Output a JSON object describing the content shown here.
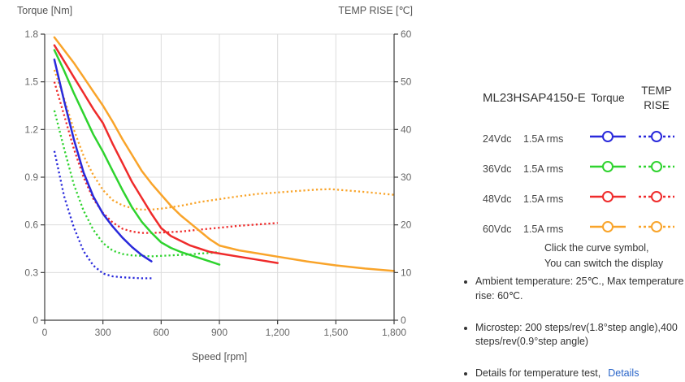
{
  "chart_data": {
    "type": "line",
    "xlabel": "Speed [rpm]",
    "ylabel_left": "Torque [Nm]",
    "ylabel_right": "TEMP RISE [℃]",
    "x_range": [
      0,
      1800
    ],
    "x_tick_values": [
      0,
      300,
      600,
      900,
      1200,
      1500,
      1800
    ],
    "x_tick_labels": [
      "0",
      "300",
      "600",
      "900",
      "1,200",
      "1,500",
      "1,800"
    ],
    "left_axis_range": [
      0,
      1.8
    ],
    "left_tick_values": [
      0,
      0.3,
      0.6,
      0.9,
      1.2,
      1.5,
      1.8
    ],
    "left_tick_labels": [
      "0",
      "0.3",
      "0.6",
      "0.9",
      "1.2",
      "1.5",
      "1.8"
    ],
    "right_axis_range": [
      0,
      60
    ],
    "right_tick_values": [
      0,
      10,
      20,
      30,
      40,
      50,
      60
    ],
    "right_tick_labels": [
      "0",
      "10",
      "20",
      "30",
      "40",
      "50",
      "60"
    ],
    "grid": true,
    "legend_position": "right-panel",
    "series": [
      {
        "id": "24vdc-temp-rise",
        "name": "24Vdc 1.5A rms TEMP RISE",
        "axis": "right",
        "line": "dotted",
        "color": "#2929db",
        "points": [
          [
            50,
            35.5
          ],
          [
            100,
            26
          ],
          [
            150,
            19.5
          ],
          [
            200,
            14.5
          ],
          [
            250,
            11.5
          ],
          [
            300,
            9.8
          ],
          [
            350,
            9.2
          ],
          [
            400,
            9.0
          ],
          [
            450,
            8.9
          ],
          [
            500,
            8.8
          ],
          [
            550,
            8.8
          ]
        ]
      },
      {
        "id": "36vdc-temp-rise",
        "name": "36Vdc 1.5A rms TEMP RISE",
        "axis": "right",
        "line": "dotted",
        "color": "#2ed32e",
        "points": [
          [
            50,
            44
          ],
          [
            100,
            36
          ],
          [
            150,
            28.5
          ],
          [
            200,
            23
          ],
          [
            250,
            19
          ],
          [
            300,
            16.2
          ],
          [
            350,
            14.6
          ],
          [
            400,
            13.9
          ],
          [
            450,
            13.6
          ],
          [
            500,
            13.5
          ],
          [
            550,
            13.4
          ],
          [
            600,
            13.5
          ],
          [
            650,
            13.6
          ],
          [
            700,
            13.7
          ],
          [
            750,
            13.8
          ],
          [
            800,
            14.0
          ],
          [
            850,
            14.1
          ],
          [
            900,
            14.3
          ]
        ]
      },
      {
        "id": "48vdc-temp-rise",
        "name": "48Vdc 1.5A rms TEMP RISE",
        "axis": "right",
        "line": "dotted",
        "color": "#ef2b2b",
        "points": [
          [
            50,
            50
          ],
          [
            100,
            43
          ],
          [
            150,
            36
          ],
          [
            200,
            30
          ],
          [
            250,
            25.5
          ],
          [
            300,
            22.5
          ],
          [
            350,
            20.5
          ],
          [
            400,
            19.2
          ],
          [
            450,
            18.6
          ],
          [
            500,
            18.3
          ],
          [
            550,
            18.3
          ],
          [
            600,
            18.4
          ],
          [
            650,
            18.5
          ],
          [
            700,
            18.6
          ],
          [
            750,
            18.8
          ],
          [
            800,
            19.0
          ],
          [
            900,
            19.4
          ],
          [
            1000,
            19.8
          ],
          [
            1100,
            20.1
          ],
          [
            1200,
            20.4
          ]
        ]
      },
      {
        "id": "60vdc-temp-rise",
        "name": "60Vdc 1.5A rms TEMP RISE",
        "axis": "right",
        "line": "dotted",
        "color": "#f9a42a",
        "points": [
          [
            50,
            52.5
          ],
          [
            100,
            46.5
          ],
          [
            150,
            40
          ],
          [
            200,
            34.5
          ],
          [
            250,
            30.5
          ],
          [
            300,
            27.3
          ],
          [
            350,
            25.2
          ],
          [
            400,
            24.1
          ],
          [
            450,
            23.5
          ],
          [
            500,
            23.2
          ],
          [
            550,
            23.2
          ],
          [
            600,
            23.4
          ],
          [
            650,
            23.7
          ],
          [
            700,
            24.0
          ],
          [
            750,
            24.4
          ],
          [
            800,
            24.8
          ],
          [
            900,
            25.4
          ],
          [
            1000,
            26.0
          ],
          [
            1100,
            26.5
          ],
          [
            1200,
            26.8
          ],
          [
            1300,
            27.1
          ],
          [
            1400,
            27.4
          ],
          [
            1470,
            27.5
          ],
          [
            1560,
            27.2
          ],
          [
            1650,
            26.9
          ],
          [
            1800,
            26.3
          ]
        ]
      },
      {
        "id": "24vdc-torque",
        "name": "24Vdc 1.5A rms Torque",
        "axis": "left",
        "line": "solid",
        "color": "#2929db",
        "points": [
          [
            50,
            1.64
          ],
          [
            100,
            1.38
          ],
          [
            150,
            1.14
          ],
          [
            200,
            0.93
          ],
          [
            250,
            0.78
          ],
          [
            300,
            0.67
          ],
          [
            350,
            0.59
          ],
          [
            400,
            0.52
          ],
          [
            450,
            0.46
          ],
          [
            500,
            0.41
          ],
          [
            550,
            0.37
          ]
        ]
      },
      {
        "id": "36vdc-torque",
        "name": "36Vdc 1.5A rms Torque",
        "axis": "left",
        "line": "solid",
        "color": "#2ed32e",
        "points": [
          [
            50,
            1.7
          ],
          [
            100,
            1.57
          ],
          [
            150,
            1.43
          ],
          [
            200,
            1.3
          ],
          [
            250,
            1.17
          ],
          [
            300,
            1.06
          ],
          [
            350,
            0.94
          ],
          [
            400,
            0.82
          ],
          [
            450,
            0.71
          ],
          [
            500,
            0.62
          ],
          [
            550,
            0.55
          ],
          [
            600,
            0.49
          ],
          [
            650,
            0.455
          ],
          [
            700,
            0.43
          ],
          [
            750,
            0.41
          ],
          [
            800,
            0.39
          ],
          [
            850,
            0.37
          ],
          [
            900,
            0.35
          ]
        ]
      },
      {
        "id": "48vdc-torque",
        "name": "48Vdc 1.5A rms Torque",
        "axis": "left",
        "line": "solid",
        "color": "#ef2b2b",
        "points": [
          [
            50,
            1.73
          ],
          [
            100,
            1.63
          ],
          [
            150,
            1.53
          ],
          [
            200,
            1.43
          ],
          [
            250,
            1.33
          ],
          [
            300,
            1.24
          ],
          [
            350,
            1.11
          ],
          [
            400,
            0.99
          ],
          [
            450,
            0.87
          ],
          [
            500,
            0.77
          ],
          [
            550,
            0.67
          ],
          [
            600,
            0.58
          ],
          [
            650,
            0.53
          ],
          [
            700,
            0.5
          ],
          [
            750,
            0.47
          ],
          [
            800,
            0.45
          ],
          [
            850,
            0.43
          ],
          [
            900,
            0.42
          ],
          [
            1000,
            0.4
          ],
          [
            1100,
            0.38
          ],
          [
            1200,
            0.36
          ]
        ]
      },
      {
        "id": "60vdc-torque",
        "name": "60Vdc 1.5A rms Torque",
        "axis": "left",
        "line": "solid",
        "color": "#f9a42a",
        "points": [
          [
            50,
            1.78
          ],
          [
            100,
            1.7
          ],
          [
            150,
            1.62
          ],
          [
            200,
            1.53
          ],
          [
            250,
            1.44
          ],
          [
            300,
            1.35
          ],
          [
            350,
            1.25
          ],
          [
            400,
            1.14
          ],
          [
            450,
            1.04
          ],
          [
            500,
            0.94
          ],
          [
            550,
            0.86
          ],
          [
            600,
            0.79
          ],
          [
            650,
            0.72
          ],
          [
            700,
            0.66
          ],
          [
            750,
            0.61
          ],
          [
            800,
            0.56
          ],
          [
            850,
            0.51
          ],
          [
            900,
            0.47
          ],
          [
            1000,
            0.44
          ],
          [
            1100,
            0.42
          ],
          [
            1200,
            0.4
          ],
          [
            1350,
            0.37
          ],
          [
            1500,
            0.345
          ],
          [
            1650,
            0.325
          ],
          [
            1800,
            0.31
          ]
        ]
      }
    ]
  },
  "legend": {
    "model": "ML23HSAP4150-E",
    "col_torque": "Torque",
    "col_temp": "TEMP RISE",
    "rows": [
      {
        "voltage": "24Vdc",
        "current": "1.5A rms",
        "color": "#2929db"
      },
      {
        "voltage": "36Vdc",
        "current": "1.5A rms",
        "color": "#2ed32e"
      },
      {
        "voltage": "48Vdc",
        "current": "1.5A rms",
        "color": "#ef2b2b"
      },
      {
        "voltage": "60Vdc",
        "current": "1.5A rms",
        "color": "#f9a42a"
      }
    ],
    "note_line1": "Click the curve symbol,",
    "note_line2": "You can switch the display"
  },
  "bullets": [
    {
      "text": "Ambient temperature: 25℃., Max temperature rise: 60℃."
    },
    {
      "text": "Microstep: 200 steps/rev(1.8°step angle),400 steps/rev(0.9°step angle)"
    },
    {
      "text": "Details for temperature test,",
      "link": "Details"
    }
  ]
}
